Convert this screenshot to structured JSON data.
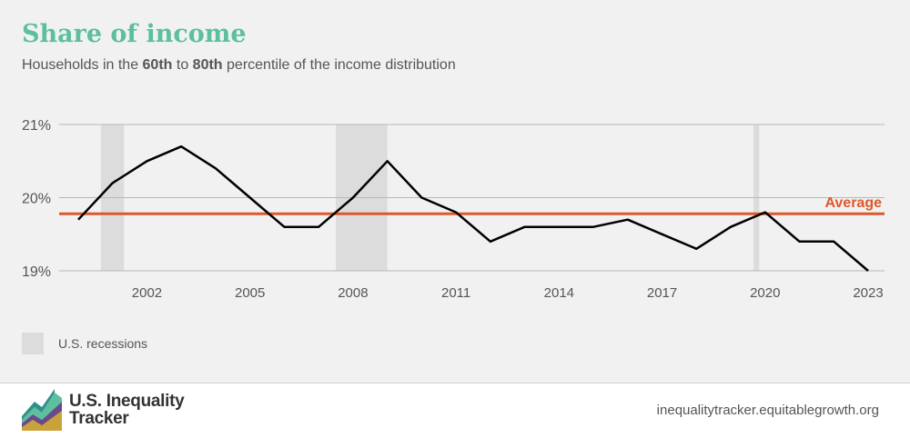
{
  "header": {
    "title": "Share of income",
    "subtitle_pre": "Households in the ",
    "subtitle_b1": "60th",
    "subtitle_mid": " to ",
    "subtitle_b2": "80th",
    "subtitle_post": " percentile of the income distribution"
  },
  "legend": {
    "recession_label": "U.S. recessions"
  },
  "footer": {
    "brand_line1": "U.S. Inequality",
    "brand_line2": "Tracker",
    "website": "inequalitytracker.equitablegrowth.org"
  },
  "colors": {
    "title": "#5cbf9e",
    "line": "#000000",
    "average": "#e0572a",
    "recession": "#dcdcdc",
    "grid": "#b8b8b8",
    "background": "#f1f1f1"
  },
  "chart_data": {
    "type": "line",
    "title": "Share of income",
    "subtitle": "Households in the 60th to 80th percentile of the income distribution",
    "x": [
      2000,
      2001,
      2002,
      2003,
      2004,
      2005,
      2006,
      2007,
      2008,
      2009,
      2010,
      2011,
      2012,
      2013,
      2014,
      2015,
      2016,
      2017,
      2018,
      2019,
      2020,
      2021,
      2022,
      2023
    ],
    "series": [
      {
        "values": [
          19.7,
          20.2,
          20.5,
          20.7,
          20.4,
          20.0,
          19.6,
          19.6,
          20.0,
          20.5,
          20.0,
          19.8,
          19.4,
          19.6,
          19.6,
          19.6,
          19.7,
          19.5,
          19.3,
          19.6,
          19.8,
          19.4,
          19.4,
          19.0
        ]
      }
    ],
    "average": {
      "label": "Average",
      "value": 19.78
    },
    "recessions": [
      [
        2000.66,
        2001.33
      ],
      [
        2007.5,
        2009.0
      ],
      [
        2019.66,
        2019.83
      ]
    ],
    "xticks": [
      2002,
      2005,
      2008,
      2011,
      2014,
      2017,
      2020,
      2023
    ],
    "yticks": [
      19,
      20,
      21
    ],
    "ytick_labels": [
      "19%",
      "20%",
      "21%"
    ],
    "ylim": [
      19,
      21
    ],
    "xlim": [
      2000,
      2023
    ],
    "xlabel": "",
    "ylabel": "",
    "grid": "horizontal"
  }
}
